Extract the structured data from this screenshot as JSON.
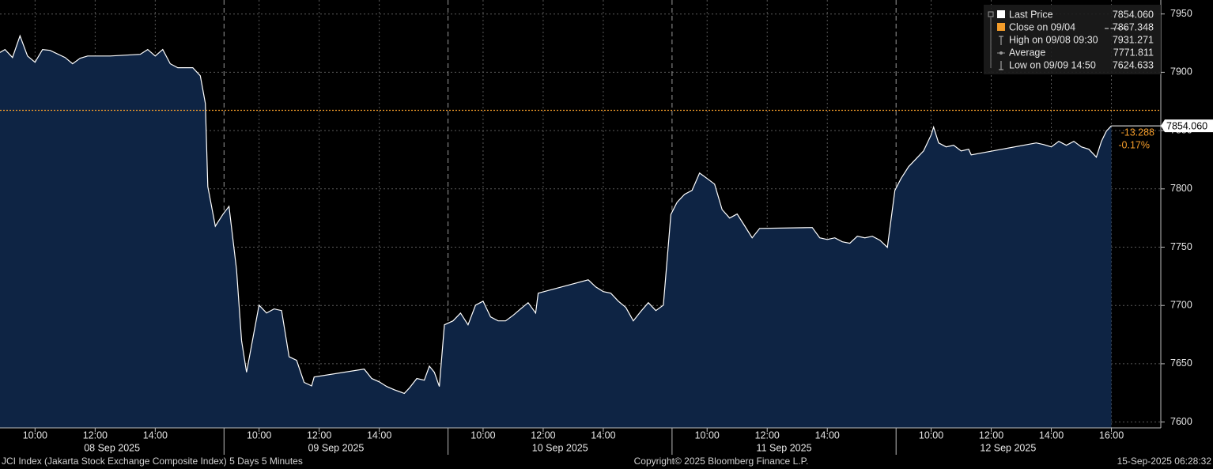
{
  "chart_data": {
    "type": "area",
    "x": [
      "2025-09-08 08:50",
      "2025-09-08 09:00",
      "2025-09-08 09:15",
      "2025-09-08 09:30",
      "2025-09-08 09:45",
      "2025-09-08 10:00",
      "2025-09-08 10:15",
      "2025-09-08 10:30",
      "2025-09-08 11:00",
      "2025-09-08 11:15",
      "2025-09-08 11:30",
      "2025-09-08 11:45",
      "2025-09-08 12:30",
      "2025-09-08 13:30",
      "2025-09-08 13:45",
      "2025-09-08 14:00",
      "2025-09-08 14:15",
      "2025-09-08 14:30",
      "2025-09-08 14:45",
      "2025-09-08 15:15",
      "2025-09-08 15:30",
      "2025-09-08 15:40",
      "2025-09-08 15:45",
      "2025-09-08 16:00",
      "2025-09-08 16:15",
      "2025-09-09 09:00",
      "2025-09-09 09:15",
      "2025-09-09 09:25",
      "2025-09-09 09:35",
      "2025-09-09 10:00",
      "2025-09-09 10:15",
      "2025-09-09 10:30",
      "2025-09-09 10:45",
      "2025-09-09 11:00",
      "2025-09-09 11:15",
      "2025-09-09 11:30",
      "2025-09-09 11:45",
      "2025-09-09 11:50",
      "2025-09-09 13:30",
      "2025-09-09 13:45",
      "2025-09-09 14:00",
      "2025-09-09 14:15",
      "2025-09-09 14:30",
      "2025-09-09 14:50",
      "2025-09-09 15:00",
      "2025-09-09 15:15",
      "2025-09-09 15:30",
      "2025-09-09 15:40",
      "2025-09-09 15:50",
      "2025-09-09 16:00",
      "2025-09-09 16:10",
      "2025-09-10 09:00",
      "2025-09-10 09:15",
      "2025-09-10 09:30",
      "2025-09-10 09:45",
      "2025-09-10 10:00",
      "2025-09-10 10:15",
      "2025-09-10 10:30",
      "2025-09-10 10:45",
      "2025-09-10 11:00",
      "2025-09-10 11:15",
      "2025-09-10 11:30",
      "2025-09-10 11:45",
      "2025-09-10 11:50",
      "2025-09-10 13:30",
      "2025-09-10 13:45",
      "2025-09-10 14:00",
      "2025-09-10 14:15",
      "2025-09-10 14:30",
      "2025-09-10 14:45",
      "2025-09-10 15:00",
      "2025-09-10 15:15",
      "2025-09-10 15:30",
      "2025-09-10 15:45",
      "2025-09-10 16:00",
      "2025-09-10 16:15",
      "2025-09-11 09:00",
      "2025-09-11 09:15",
      "2025-09-11 09:30",
      "2025-09-11 09:45",
      "2025-09-11 10:00",
      "2025-09-11 10:15",
      "2025-09-11 10:30",
      "2025-09-11 10:45",
      "2025-09-11 11:00",
      "2025-09-11 11:15",
      "2025-09-11 11:30",
      "2025-09-11 11:45",
      "2025-09-11 13:30",
      "2025-09-11 13:45",
      "2025-09-11 14:00",
      "2025-09-11 14:15",
      "2025-09-11 14:30",
      "2025-09-11 14:45",
      "2025-09-11 15:00",
      "2025-09-11 15:15",
      "2025-09-11 15:30",
      "2025-09-11 15:45",
      "2025-09-11 16:00",
      "2025-09-11 16:15",
      "2025-09-12 09:00",
      "2025-09-12 09:15",
      "2025-09-12 09:30",
      "2025-09-12 09:45",
      "2025-09-12 10:00",
      "2025-09-12 10:05",
      "2025-09-12 10:15",
      "2025-09-12 10:30",
      "2025-09-12 10:45",
      "2025-09-12 11:00",
      "2025-09-12 11:15",
      "2025-09-12 11:20",
      "2025-09-12 13:30",
      "2025-09-12 13:45",
      "2025-09-12 14:00",
      "2025-09-12 14:15",
      "2025-09-12 14:30",
      "2025-09-12 14:45",
      "2025-09-12 15:00",
      "2025-09-12 15:15",
      "2025-09-12 15:30",
      "2025-09-12 15:40",
      "2025-09-12 15:50",
      "2025-09-12 16:00"
    ],
    "series": [
      {
        "name": "Last Price",
        "color": "#ffffff",
        "fill": "#0e2444",
        "values": [
          7917,
          7919.5,
          7912.7,
          7931.3,
          7914,
          7908.6,
          7919.5,
          7918.8,
          7912.7,
          7907.3,
          7912,
          7914,
          7914,
          7915.4,
          7919.5,
          7914,
          7919.5,
          7907.3,
          7903.9,
          7903.9,
          7897,
          7873.3,
          7802,
          7768,
          7778,
          7785,
          7731,
          7669.8,
          7642.7,
          7700.3,
          7693.5,
          7697,
          7695.6,
          7656,
          7652.9,
          7634,
          7631,
          7638.6,
          7645.4,
          7637.3,
          7634.5,
          7630.5,
          7627.7,
          7624.6,
          7629.1,
          7637.3,
          7635.9,
          7648,
          7642.7,
          7630.5,
          7683.4,
          7686.8,
          7693.5,
          7683.4,
          7700.3,
          7703.7,
          7690.2,
          7686.8,
          7686.8,
          7691.5,
          7697,
          7702.4,
          7693.5,
          7710.5,
          7722,
          7715.9,
          7711.9,
          7710.5,
          7703.7,
          7698.3,
          7686.8,
          7694.9,
          7702.4,
          7695.6,
          7700.3,
          7778,
          7788.5,
          7795.3,
          7798.7,
          7813.6,
          7808.9,
          7804.1,
          7782.2,
          7775,
          7778.4,
          7768.3,
          7758,
          7766.1,
          7766.8,
          7758,
          7756.6,
          7758,
          7754.6,
          7753.3,
          7759.4,
          7758,
          7759.4,
          7756,
          7749.9,
          7798.7,
          7808.9,
          7819,
          7825.8,
          7832.6,
          7846.2,
          7853,
          7839.4,
          7836,
          7837.4,
          7832.6,
          7834,
          7829.2,
          7839.4,
          7838,
          7836,
          7840.8,
          7837.4,
          7840.8,
          7836,
          7834,
          7827.2,
          7840.8,
          7849.6,
          7854.06
        ]
      }
    ],
    "close_line": {
      "value": 7867.348,
      "color": "#f39c2a"
    },
    "ylim": [
      7595,
      7962
    ],
    "yticks": [
      7600,
      7650,
      7700,
      7750,
      7800,
      7850,
      7900,
      7950
    ],
    "days": [
      {
        "value": "2025-09-08",
        "label": "08 Sep 2025"
      },
      {
        "value": "2025-09-09",
        "label": "09 Sep 2025"
      },
      {
        "value": "2025-09-10",
        "label": "10 Sep 2025"
      },
      {
        "value": "2025-09-11",
        "label": "11 Sep 2025"
      },
      {
        "value": "2025-09-12",
        "label": "12 Sep 2025"
      }
    ],
    "xticks": [
      {
        "value": "2025-09-08 10:00",
        "label": "10:00"
      },
      {
        "value": "2025-09-08 12:00",
        "label": "12:00"
      },
      {
        "value": "2025-09-08 14:00",
        "label": "14:00"
      },
      {
        "value": "2025-09-09 10:00",
        "label": "10:00"
      },
      {
        "value": "2025-09-09 12:00",
        "label": "12:00"
      },
      {
        "value": "2025-09-09 14:00",
        "label": "14:00"
      },
      {
        "value": "2025-09-10 10:00",
        "label": "10:00"
      },
      {
        "value": "2025-09-10 12:00",
        "label": "12:00"
      },
      {
        "value": "2025-09-10 14:00",
        "label": "14:00"
      },
      {
        "value": "2025-09-11 10:00",
        "label": "10:00"
      },
      {
        "value": "2025-09-11 12:00",
        "label": "12:00"
      },
      {
        "value": "2025-09-11 14:00",
        "label": "14:00"
      },
      {
        "value": "2025-09-12 10:00",
        "label": "10:00"
      },
      {
        "value": "2025-09-12 12:00",
        "label": "12:00"
      },
      {
        "value": "2025-09-12 14:00",
        "label": "14:00"
      },
      {
        "value": "2025-09-12 16:00",
        "label": "16:00"
      }
    ],
    "grid": true,
    "legend_items": [
      {
        "name": "Last Price",
        "value_label": "7854.060"
      },
      {
        "name": "Close on 09/04",
        "value_label": "7867.348"
      },
      {
        "name": "High on 09/08 09:30",
        "value_label": "7931.271"
      },
      {
        "name": "Average",
        "value_label": "7771.811"
      },
      {
        "name": "Low on 09/09 14:50",
        "value_label": "7624.633"
      }
    ],
    "annotations": {
      "price_tag": "7854.060",
      "change": "-13.288",
      "change_pct": "-0.17%"
    },
    "footer": {
      "left": "JCI Index (Jakarta Stock Exchange Composite Index) 5 Days 5 Minutes",
      "center": "Copyright© 2025 Bloomberg Finance L.P.",
      "right": "15-Sep-2025 06:28:32"
    }
  }
}
